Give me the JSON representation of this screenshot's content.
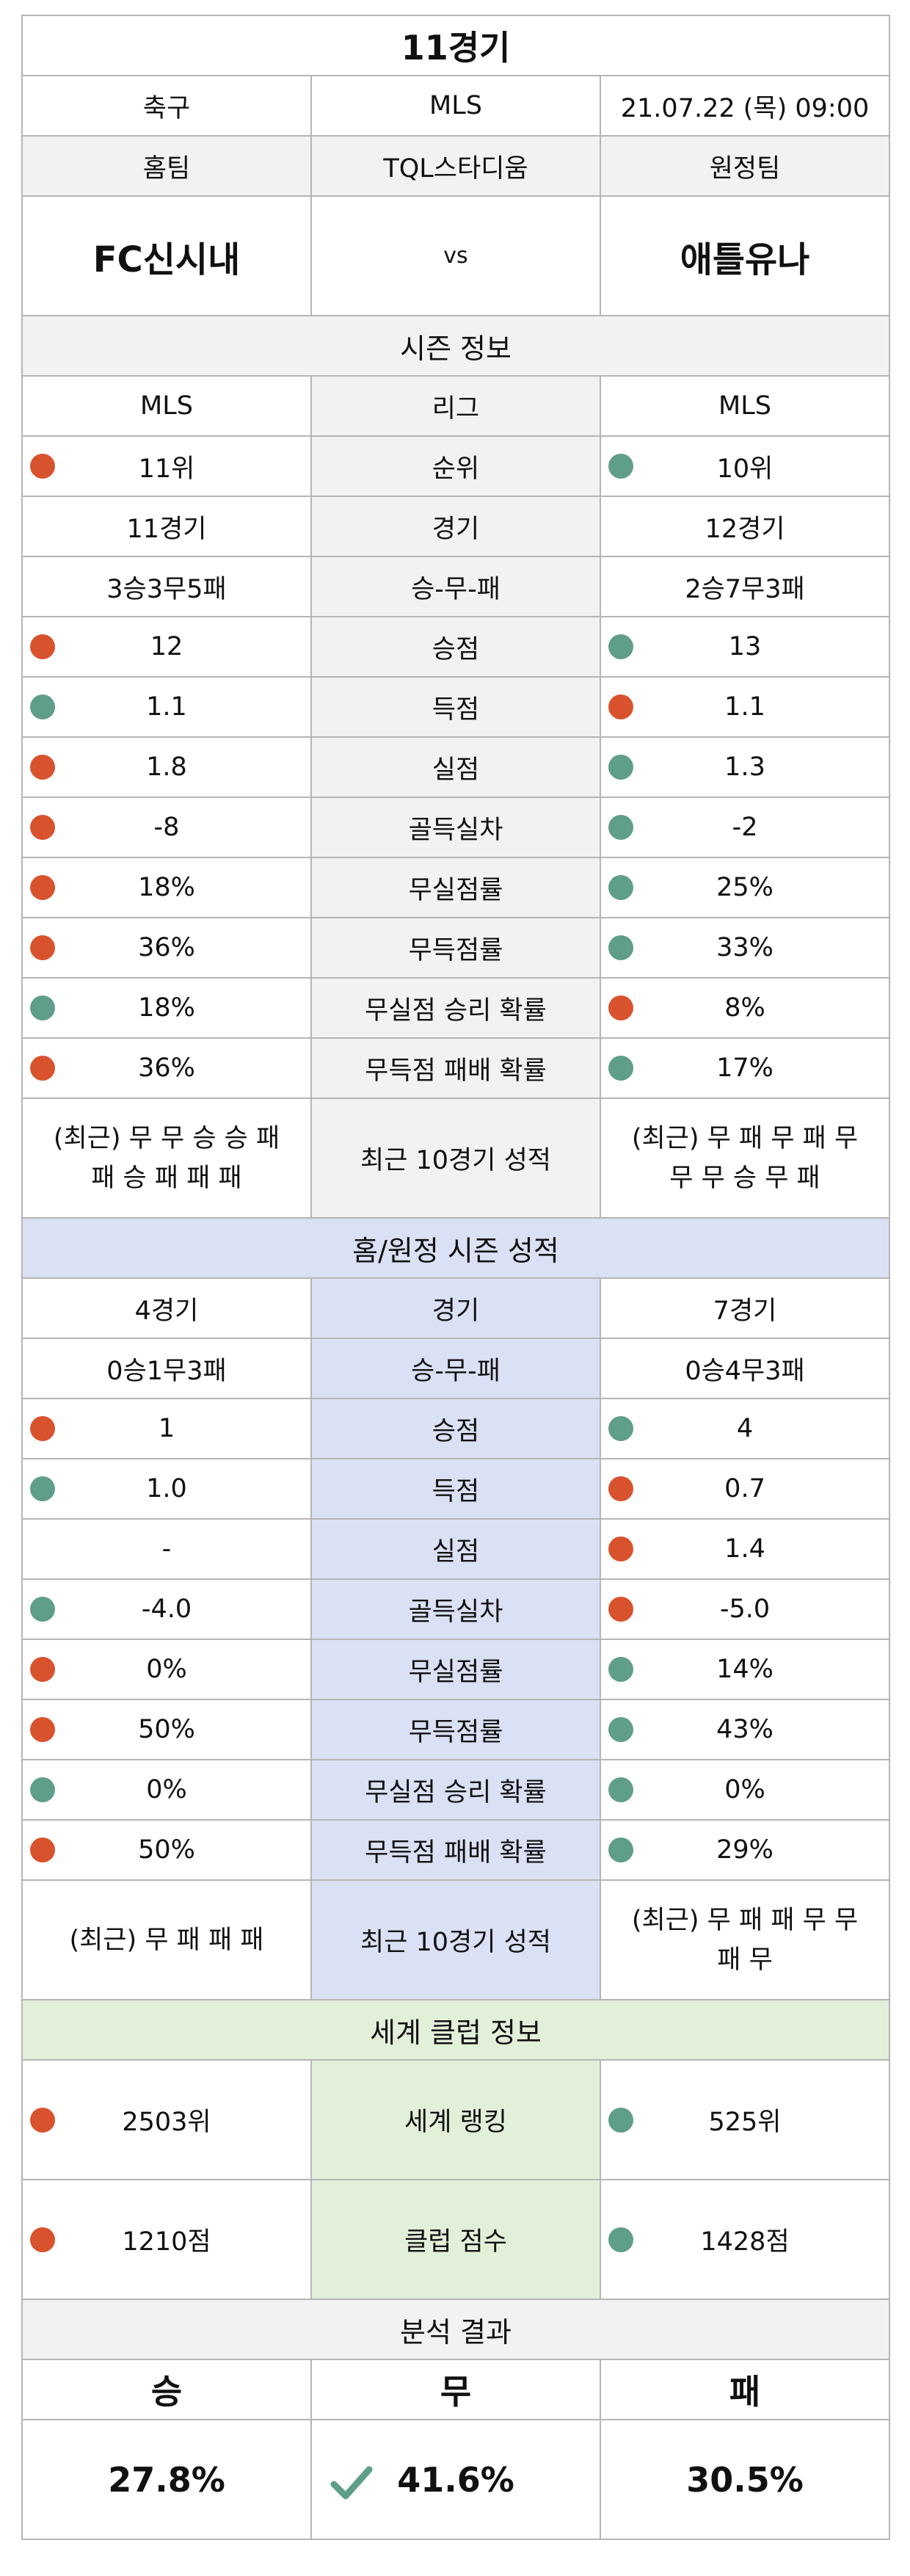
{
  "header": {
    "title": "11경기",
    "sport": "축구",
    "league": "MLS",
    "datetime": "21.07.22 (목) 09:00",
    "home_label": "홈팀",
    "stadium": "TQL스타디움",
    "away_label": "원정팀",
    "home_team": "FC신시내",
    "vs": "vs",
    "away_team": "애틀유나"
  },
  "season": {
    "title": "시즌 정보",
    "rows": [
      {
        "label": "리그",
        "home": "MLS",
        "away": "MLS",
        "home_dot": "",
        "away_dot": ""
      },
      {
        "label": "순위",
        "home": "11위",
        "away": "10위",
        "home_dot": "red",
        "away_dot": "teal"
      },
      {
        "label": "경기",
        "home": "11경기",
        "away": "12경기",
        "home_dot": "",
        "away_dot": ""
      },
      {
        "label": "승-무-패",
        "home": "3승3무5패",
        "away": "2승7무3패",
        "home_dot": "",
        "away_dot": ""
      },
      {
        "label": "승점",
        "home": "12",
        "away": "13",
        "home_dot": "red",
        "away_dot": "teal"
      },
      {
        "label": "득점",
        "home": "1.1",
        "away": "1.1",
        "home_dot": "teal",
        "away_dot": "red"
      },
      {
        "label": "실점",
        "home": "1.8",
        "away": "1.3",
        "home_dot": "red",
        "away_dot": "teal"
      },
      {
        "label": "골득실차",
        "home": "-8",
        "away": "-2",
        "home_dot": "red",
        "away_dot": "teal"
      },
      {
        "label": "무실점률",
        "home": "18%",
        "away": "25%",
        "home_dot": "red",
        "away_dot": "teal"
      },
      {
        "label": "무득점률",
        "home": "36%",
        "away": "33%",
        "home_dot": "red",
        "away_dot": "teal"
      },
      {
        "label": "무실점 승리 확률",
        "home": "18%",
        "away": "8%",
        "home_dot": "teal",
        "away_dot": "red"
      },
      {
        "label": "무득점 패배 확률",
        "home": "36%",
        "away": "17%",
        "home_dot": "red",
        "away_dot": "teal"
      }
    ],
    "recent": {
      "label": "최근 10경기 성적",
      "home_line1": "(최근) 무 무 승 승 패",
      "home_line2": "패 승 패 패 패",
      "away_line1": "(최근) 무 패 무 패 무",
      "away_line2": "무 무 승 무 패"
    }
  },
  "homeaway": {
    "title": "홈/원정 시즌 성적",
    "rows": [
      {
        "label": "경기",
        "home": "4경기",
        "away": "7경기",
        "home_dot": "",
        "away_dot": ""
      },
      {
        "label": "승-무-패",
        "home": "0승1무3패",
        "away": "0승4무3패",
        "home_dot": "",
        "away_dot": ""
      },
      {
        "label": "승점",
        "home": "1",
        "away": "4",
        "home_dot": "red",
        "away_dot": "teal"
      },
      {
        "label": "득점",
        "home": "1.0",
        "away": "0.7",
        "home_dot": "teal",
        "away_dot": "red"
      },
      {
        "label": "실점",
        "home": "-",
        "away": "1.4",
        "home_dot": "",
        "away_dot": "red"
      },
      {
        "label": "골득실차",
        "home": "-4.0",
        "away": "-5.0",
        "home_dot": "teal",
        "away_dot": "red"
      },
      {
        "label": "무실점률",
        "home": "0%",
        "away": "14%",
        "home_dot": "red",
        "away_dot": "teal"
      },
      {
        "label": "무득점률",
        "home": "50%",
        "away": "43%",
        "home_dot": "red",
        "away_dot": "teal"
      },
      {
        "label": "무실점 승리 확률",
        "home": "0%",
        "away": "0%",
        "home_dot": "teal",
        "away_dot": "teal"
      },
      {
        "label": "무득점 패배 확률",
        "home": "50%",
        "away": "29%",
        "home_dot": "red",
        "away_dot": "teal"
      }
    ],
    "recent": {
      "label": "최근 10경기 성적",
      "home_line1": "(최근) 무 패 패 패",
      "home_line2": "",
      "away_line1": "(최근) 무 패 패 무 무",
      "away_line2": "패 무"
    }
  },
  "world": {
    "title": "세계 클럽 정보",
    "rows": [
      {
        "label": "세계 랭킹",
        "home": "2503위",
        "away": "525위",
        "home_dot": "red",
        "away_dot": "teal"
      },
      {
        "label": "클럽 점수",
        "home": "1210점",
        "away": "1428점",
        "home_dot": "red",
        "away_dot": "teal"
      }
    ]
  },
  "analysis": {
    "title": "분석 결과",
    "win_label": "승",
    "draw_label": "무",
    "lose_label": "패",
    "win_value": "27.8%",
    "draw_value": "41.6%",
    "lose_value": "30.5%",
    "selected_icon": "check-icon"
  },
  "colors": {
    "red_dot": "#d9522e",
    "teal_dot": "#5f9e87",
    "grey_bg": "#f2f2f2",
    "blue_bg": "#dae1f4",
    "green_bg": "#e3f0d9",
    "check_green": "#5f9e87"
  }
}
